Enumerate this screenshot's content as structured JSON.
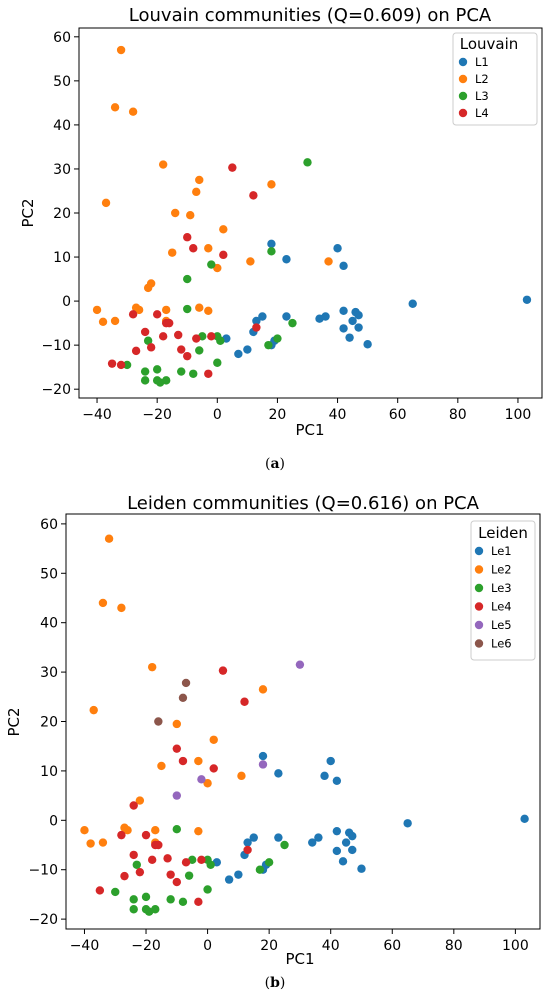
{
  "chart_data": [
    {
      "type": "scatter",
      "title": "Louvain communities (Q=0.609) on PCA",
      "xlabel": "PC1",
      "ylabel": "PC2",
      "xlim": [
        -46,
        108
      ],
      "ylim": [
        -22,
        62
      ],
      "xticks": [
        -40,
        -20,
        0,
        20,
        40,
        60,
        80,
        100
      ],
      "yticks": [
        -20,
        -10,
        0,
        10,
        20,
        30,
        40,
        50,
        60
      ],
      "grid": false,
      "legend_title": "Louvain",
      "legend_position": "top-right",
      "caption_open": "(",
      "caption_letter": "a",
      "caption_close": ")",
      "series": [
        {
          "name": "L1",
          "color": "#1f77b4",
          "points": [
            [
              18,
              13
            ],
            [
              23,
              9.5
            ],
            [
              40,
              12
            ],
            [
              42,
              8
            ],
            [
              103,
              0.3
            ],
            [
              65,
              -0.6
            ],
            [
              13,
              -4.5
            ],
            [
              15,
              -3.5
            ],
            [
              23,
              -3.5
            ],
            [
              34,
              -4
            ],
            [
              36,
              -3.5
            ],
            [
              42,
              -2.2
            ],
            [
              46,
              -2.5
            ],
            [
              47,
              -3.2
            ],
            [
              45,
              -4.5
            ],
            [
              42,
              -6.2
            ],
            [
              47,
              -6
            ],
            [
              50,
              -9.8
            ],
            [
              44,
              -8.3
            ],
            [
              12,
              -7
            ],
            [
              3,
              -8.5
            ],
            [
              10,
              -11
            ],
            [
              7,
              -12
            ],
            [
              19,
              -9
            ],
            [
              18,
              -10
            ]
          ]
        },
        {
          "name": "L2",
          "color": "#ff7f0e",
          "points": [
            [
              -32,
              57
            ],
            [
              -34,
              44
            ],
            [
              -28,
              43
            ],
            [
              -18,
              31
            ],
            [
              -37,
              22.3
            ],
            [
              -6,
              27.5
            ],
            [
              18,
              26.5
            ],
            [
              -7,
              24.8
            ],
            [
              -14,
              20
            ],
            [
              -9,
              19.5
            ],
            [
              2,
              16.3
            ],
            [
              -15,
              11
            ],
            [
              -3,
              12
            ],
            [
              11,
              9
            ],
            [
              37,
              9
            ],
            [
              0,
              7.5
            ],
            [
              -22,
              4
            ],
            [
              -23,
              3
            ],
            [
              -40,
              -2
            ],
            [
              -27,
              -1.5
            ],
            [
              -26,
              -2
            ],
            [
              -17,
              -2
            ],
            [
              -3,
              -2.2
            ],
            [
              -6,
              -1.5
            ],
            [
              -38,
              -4.7
            ],
            [
              -34,
              -4.5
            ],
            [
              -17,
              -4.5
            ]
          ]
        },
        {
          "name": "L3",
          "color": "#2ca02c",
          "points": [
            [
              30,
              31.5
            ],
            [
              18,
              11.3
            ],
            [
              -2,
              8.3
            ],
            [
              -10,
              5
            ],
            [
              -10,
              -1.8
            ],
            [
              -23,
              -9
            ],
            [
              -5,
              -8
            ],
            [
              0,
              -8
            ],
            [
              1,
              -9
            ],
            [
              25,
              -5
            ],
            [
              20,
              -8.5
            ],
            [
              17,
              -10
            ],
            [
              -6,
              -11.2
            ],
            [
              -30,
              -14.5
            ],
            [
              -20,
              -15.5
            ],
            [
              -12,
              -16
            ],
            [
              -8,
              -16.5
            ],
            [
              0,
              -14
            ],
            [
              -24,
              -16
            ],
            [
              -24,
              -18
            ],
            [
              -20,
              -18
            ],
            [
              -19,
              -18.5
            ],
            [
              -17,
              -18
            ]
          ]
        },
        {
          "name": "L4",
          "color": "#d62728",
          "points": [
            [
              5,
              30.3
            ],
            [
              12,
              24
            ],
            [
              -10,
              14.5
            ],
            [
              -8,
              12
            ],
            [
              2,
              10.5
            ],
            [
              -28,
              -3
            ],
            [
              -20,
              -3
            ],
            [
              -17,
              -5
            ],
            [
              -16,
              -5
            ],
            [
              -13,
              -7.7
            ],
            [
              -24,
              -7
            ],
            [
              -18,
              -8
            ],
            [
              -7,
              -8.5
            ],
            [
              -2,
              -8
            ],
            [
              -22,
              -10.5
            ],
            [
              -27,
              -11.3
            ],
            [
              -12,
              -11
            ],
            [
              -10,
              -12.5
            ],
            [
              -32,
              -14.5
            ],
            [
              -35,
              -14.2
            ],
            [
              -3,
              -16.5
            ],
            [
              13,
              -6
            ]
          ]
        }
      ]
    },
    {
      "type": "scatter",
      "title": "Leiden communities (Q=0.616) on PCA",
      "xlabel": "PC1",
      "ylabel": "PC2",
      "xlim": [
        -46,
        108
      ],
      "ylim": [
        -22,
        62
      ],
      "xticks": [
        -40,
        -20,
        0,
        20,
        40,
        60,
        80,
        100
      ],
      "yticks": [
        -20,
        -10,
        0,
        10,
        20,
        30,
        40,
        50,
        60
      ],
      "grid": false,
      "legend_title": "Leiden",
      "legend_position": "top-right",
      "caption_open": "(",
      "caption_letter": "b",
      "caption_close": ")",
      "series": [
        {
          "name": "Le1",
          "color": "#1f77b4",
          "points": [
            [
              18,
              13
            ],
            [
              23,
              9.5
            ],
            [
              40,
              12
            ],
            [
              42,
              8
            ],
            [
              38,
              9
            ],
            [
              103,
              0.3
            ],
            [
              65,
              -0.6
            ],
            [
              13,
              -4.5
            ],
            [
              15,
              -3.5
            ],
            [
              23,
              -3.5
            ],
            [
              34,
              -4.5
            ],
            [
              36,
              -3.5
            ],
            [
              42,
              -2.2
            ],
            [
              46,
              -2.5
            ],
            [
              47,
              -3.2
            ],
            [
              45,
              -4.5
            ],
            [
              42,
              -6.2
            ],
            [
              47,
              -6
            ],
            [
              50,
              -9.8
            ],
            [
              44,
              -8.3
            ],
            [
              12,
              -7
            ],
            [
              3,
              -8.5
            ],
            [
              10,
              -11
            ],
            [
              7,
              -12
            ],
            [
              19,
              -9
            ],
            [
              18,
              -10
            ]
          ]
        },
        {
          "name": "Le2",
          "color": "#ff7f0e",
          "points": [
            [
              -32,
              57
            ],
            [
              -34,
              44
            ],
            [
              -28,
              43
            ],
            [
              -18,
              31
            ],
            [
              -37,
              22.3
            ],
            [
              18,
              26.5
            ],
            [
              -10,
              19.5
            ],
            [
              2,
              16.3
            ],
            [
              -15,
              11
            ],
            [
              -3,
              12
            ],
            [
              11,
              9
            ],
            [
              0,
              7.5
            ],
            [
              -22,
              4
            ],
            [
              -40,
              -2
            ],
            [
              -27,
              -1.5
            ],
            [
              -26,
              -2
            ],
            [
              -17,
              -2
            ],
            [
              -3,
              -2.2
            ],
            [
              -38,
              -4.7
            ],
            [
              -34,
              -4.5
            ],
            [
              -17,
              -4.5
            ]
          ]
        },
        {
          "name": "Le3",
          "color": "#2ca02c",
          "points": [
            [
              -10,
              -1.8
            ],
            [
              -23,
              -9
            ],
            [
              -5,
              -8
            ],
            [
              0,
              -8
            ],
            [
              1,
              -9
            ],
            [
              25,
              -5
            ],
            [
              20,
              -8.5
            ],
            [
              17,
              -10
            ],
            [
              -6,
              -11.2
            ],
            [
              -30,
              -14.5
            ],
            [
              -20,
              -15.5
            ],
            [
              -12,
              -16
            ],
            [
              -8,
              -16.5
            ],
            [
              0,
              -14
            ],
            [
              -24,
              -16
            ],
            [
              -24,
              -18
            ],
            [
              -20,
              -18
            ],
            [
              -19,
              -18.5
            ],
            [
              -17,
              -18
            ]
          ]
        },
        {
          "name": "Le4",
          "color": "#d62728",
          "points": [
            [
              5,
              30.3
            ],
            [
              12,
              24
            ],
            [
              -10,
              14.5
            ],
            [
              -8,
              12
            ],
            [
              2,
              10.5
            ],
            [
              -28,
              -3
            ],
            [
              -24,
              3
            ],
            [
              -20,
              -3
            ],
            [
              -17,
              -5
            ],
            [
              -16,
              -5
            ],
            [
              -13,
              -7.7
            ],
            [
              -24,
              -7
            ],
            [
              -18,
              -8
            ],
            [
              -7,
              -8.5
            ],
            [
              -2,
              -8
            ],
            [
              -22,
              -10.5
            ],
            [
              -27,
              -11.3
            ],
            [
              -12,
              -11
            ],
            [
              -10,
              -12.5
            ],
            [
              -35,
              -14.2
            ],
            [
              -3,
              -16.5
            ],
            [
              13,
              -6
            ]
          ]
        },
        {
          "name": "Le5",
          "color": "#9467bd",
          "points": [
            [
              30,
              31.5
            ],
            [
              18,
              11.3
            ],
            [
              -2,
              8.3
            ],
            [
              -10,
              5
            ]
          ]
        },
        {
          "name": "Le6",
          "color": "#8c564b",
          "points": [
            [
              -7,
              27.8
            ],
            [
              -8,
              24.8
            ],
            [
              -16,
              20
            ]
          ]
        }
      ]
    }
  ]
}
